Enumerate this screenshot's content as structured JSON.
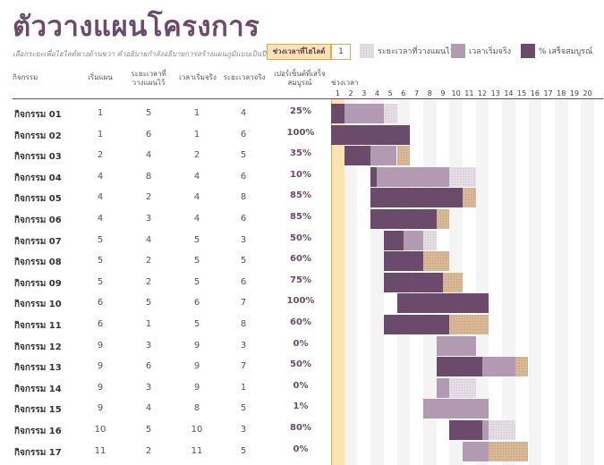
{
  "title": "ตัววางแผนโครงการ",
  "subtitle": "เลือกระยะเพื่อไฮไลต์ทางด้านขวา  คำอธิบายกำลังอธิบายการสร้างแผนภูมิแบบเป็นปี",
  "highlight": {
    "label": "ช่วงเวลาที่ไฮไลต์",
    "value": "1"
  },
  "legend": [
    {
      "label": "ระยะเวลาที่วางแผนไว้",
      "color": "#e5dde5",
      "kind": "plan"
    },
    {
      "label": "เวลาเริ่มจริง",
      "color": "#b39ab3",
      "kind": "actual"
    },
    {
      "label": "% เสร็จสมบูรณ์",
      "color": "#6b4a6b",
      "kind": "done"
    }
  ],
  "headers": {
    "activity": "กิจกรรม",
    "plan_start": "เริ่มแผน",
    "plan_duration": "ระยะเวลาที่วางแผนไว้",
    "actual_start": "เวลาเริ่มจริง",
    "actual_duration": "ระยะเวลาจริง",
    "percent": "เปอร์เซ็นต์ที่เสร็จสมบูรณ์",
    "periods": "ช่วงเวลา"
  },
  "periods": [
    "1",
    "2",
    "3",
    "4",
    "5",
    "6",
    "7",
    "8",
    "9",
    "10",
    "11",
    "12",
    "13",
    "14",
    "15",
    "16",
    "17",
    "18",
    "19",
    "20"
  ],
  "rows": [
    {
      "name": "กิจกรรม 01",
      "plan_start": 1,
      "plan_duration": 5,
      "actual_start": 1,
      "actual_duration": 4,
      "percent": "25%"
    },
    {
      "name": "กิจกรรม 02",
      "plan_start": 1,
      "plan_duration": 6,
      "actual_start": 1,
      "actual_duration": 6,
      "percent": "100%"
    },
    {
      "name": "กิจกรรม 03",
      "plan_start": 2,
      "plan_duration": 4,
      "actual_start": 2,
      "actual_duration": 5,
      "percent": "35%"
    },
    {
      "name": "กิจกรรม 04",
      "plan_start": 4,
      "plan_duration": 8,
      "actual_start": 4,
      "actual_duration": 6,
      "percent": "10%"
    },
    {
      "name": "กิจกรรม 05",
      "plan_start": 4,
      "plan_duration": 2,
      "actual_start": 4,
      "actual_duration": 8,
      "percent": "85%"
    },
    {
      "name": "กิจกรรม 06",
      "plan_start": 4,
      "plan_duration": 3,
      "actual_start": 4,
      "actual_duration": 6,
      "percent": "85%"
    },
    {
      "name": "กิจกรรม 07",
      "plan_start": 5,
      "plan_duration": 4,
      "actual_start": 5,
      "actual_duration": 3,
      "percent": "50%"
    },
    {
      "name": "กิจกรรม 08",
      "plan_start": 5,
      "plan_duration": 2,
      "actual_start": 5,
      "actual_duration": 5,
      "percent": "60%"
    },
    {
      "name": "กิจกรรม 09",
      "plan_start": 5,
      "plan_duration": 2,
      "actual_start": 5,
      "actual_duration": 6,
      "percent": "75%"
    },
    {
      "name": "กิจกรรม 10",
      "plan_start": 6,
      "plan_duration": 5,
      "actual_start": 6,
      "actual_duration": 7,
      "percent": "100%"
    },
    {
      "name": "กิจกรรม 11",
      "plan_start": 6,
      "plan_duration": 1,
      "actual_start": 5,
      "actual_duration": 8,
      "percent": "60%"
    },
    {
      "name": "กิจกรรม 12",
      "plan_start": 9,
      "plan_duration": 3,
      "actual_start": 9,
      "actual_duration": 3,
      "percent": "0%"
    },
    {
      "name": "กิจกรรม 13",
      "plan_start": 9,
      "plan_duration": 6,
      "actual_start": 9,
      "actual_duration": 7,
      "percent": "50%"
    },
    {
      "name": "กิจกรรม 14",
      "plan_start": 9,
      "plan_duration": 3,
      "actual_start": 9,
      "actual_duration": 1,
      "percent": "0%"
    },
    {
      "name": "กิจกรรม 15",
      "plan_start": 9,
      "plan_duration": 4,
      "actual_start": 8,
      "actual_duration": 5,
      "percent": "1%"
    },
    {
      "name": "กิจกรรม 16",
      "plan_start": 10,
      "plan_duration": 5,
      "actual_start": 10,
      "actual_duration": 3,
      "percent": "80%"
    },
    {
      "name": "กิจกรรม 17",
      "plan_start": 11,
      "plan_duration": 2,
      "actual_start": 11,
      "actual_duration": 5,
      "percent": "0%"
    }
  ]
}
